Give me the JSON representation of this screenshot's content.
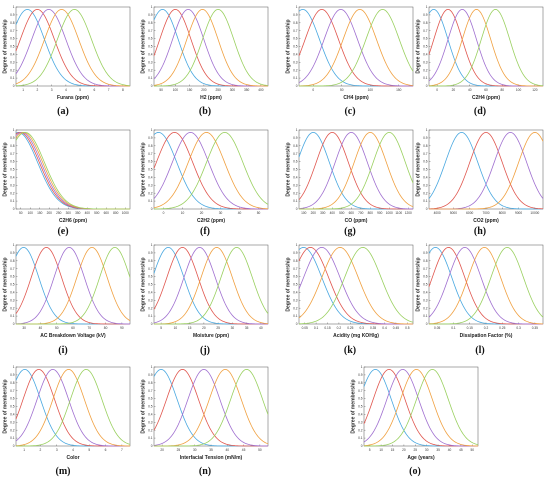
{
  "colors": [
    "#4aa8e0",
    "#e0574f",
    "#a070d0",
    "#f0a040",
    "#9ad060",
    "#58c8c8",
    "#e070b0",
    "#c0a060"
  ],
  "chart_data": [
    {
      "id": "a",
      "caption": "(a)",
      "type": "line",
      "xlabel": "Furans (ppm)",
      "ylabel": "Degree of membership",
      "xlim": [
        0,
        8
      ],
      "ylim": [
        0,
        1
      ],
      "xticks": [
        "1",
        "2",
        "3",
        "4",
        "5",
        "6",
        "7",
        "8"
      ],
      "yticks": [
        "0",
        "0.1",
        "0.2",
        "0.3",
        "0.4",
        "0.5",
        "0.6",
        "0.7",
        "0.8",
        "0.9",
        "1"
      ],
      "series": [
        {
          "center": 0.8,
          "sigma": 1.2
        },
        {
          "center": 1.5,
          "sigma": 1.2
        },
        {
          "center": 2.3,
          "sigma": 1.2
        },
        {
          "center": 3.2,
          "sigma": 1.2
        },
        {
          "center": 4.1,
          "sigma": 1.2
        }
      ]
    },
    {
      "id": "b",
      "caption": "(b)",
      "type": "line",
      "xlabel": "H2 (ppm)",
      "ylabel": "Degree of membership",
      "xlim": [
        0,
        400
      ],
      "ylim": [
        0,
        1
      ],
      "xticks": [
        "50",
        "100",
        "150",
        "200",
        "250",
        "300",
        "350",
        "400"
      ],
      "yticks": [
        "0",
        "0.1",
        "0.2",
        "0.3",
        "0.4",
        "0.5",
        "0.6",
        "0.7",
        "0.8",
        "0.9",
        "1"
      ],
      "series": [
        {
          "center": 30,
          "sigma": 55
        },
        {
          "center": 75,
          "sigma": 55
        },
        {
          "center": 120,
          "sigma": 55
        },
        {
          "center": 170,
          "sigma": 55
        },
        {
          "center": 225,
          "sigma": 55
        }
      ]
    },
    {
      "id": "c",
      "caption": "(c)",
      "type": "line",
      "xlabel": "CH4 (ppm)",
      "ylabel": "Degree of membership",
      "xlim": [
        0,
        150
      ],
      "ylim": [
        0,
        1
      ],
      "xticks": [
        "0",
        "50",
        "100",
        "150"
      ],
      "yticks": [
        "0",
        "0.1",
        "0.2",
        "0.3",
        "0.4",
        "0.5",
        "0.6",
        "0.7",
        "0.8",
        "0.9",
        "1"
      ],
      "series": [
        {
          "center": 5,
          "sigma": 22
        },
        {
          "center": 30,
          "sigma": 22
        },
        {
          "center": 55,
          "sigma": 22
        },
        {
          "center": 80,
          "sigma": 22
        },
        {
          "center": 110,
          "sigma": 22
        }
      ]
    },
    {
      "id": "d",
      "caption": "(d)",
      "type": "line",
      "xlabel": "C2H4 (ppm)",
      "ylabel": "Degree of membership",
      "xlim": [
        0,
        120
      ],
      "ylim": [
        0,
        1
      ],
      "xticks": [
        "0",
        "20",
        "40",
        "60",
        "80",
        "100",
        "120"
      ],
      "yticks": [
        "0",
        "0.1",
        "0.2",
        "0.3",
        "0.4",
        "0.5",
        "0.6",
        "0.7",
        "0.8",
        "0.9",
        "1"
      ],
      "series": [
        {
          "center": 5,
          "sigma": 15
        },
        {
          "center": 20,
          "sigma": 15
        },
        {
          "center": 35,
          "sigma": 15
        },
        {
          "center": 50,
          "sigma": 15
        },
        {
          "center": 70,
          "sigma": 15
        }
      ]
    },
    {
      "id": "e",
      "caption": "(e)",
      "type": "line",
      "xlabel": "C2H6 (ppm)",
      "ylabel": "Degree of membership",
      "xlim": [
        0,
        1000
      ],
      "ylim": [
        0,
        1
      ],
      "xticks": [
        "50",
        "100",
        "150",
        "200",
        "250",
        "300",
        "350",
        "400",
        "500",
        "600",
        "800",
        "1000"
      ],
      "yticks": [
        "0",
        "0.1",
        "0.2",
        "0.3",
        "0.4",
        "0.5",
        "0.6",
        "0.7",
        "0.8",
        "0.9",
        "1"
      ],
      "series": [
        {
          "center": 20,
          "sigma": 170
        },
        {
          "center": 35,
          "sigma": 170
        },
        {
          "center": 50,
          "sigma": 170
        },
        {
          "center": 65,
          "sigma": 170
        },
        {
          "center": 80,
          "sigma": 170
        }
      ]
    },
    {
      "id": "f",
      "caption": "(f)",
      "type": "line",
      "xlabel": "C2H2 (ppm)",
      "ylabel": "Degree of membership",
      "xlim": [
        0,
        50
      ],
      "ylim": [
        0,
        1
      ],
      "xticks": [
        "0",
        "10",
        "20",
        "30",
        "40",
        "50"
      ],
      "yticks": [
        "0",
        "0.1",
        "0.2",
        "0.3",
        "0.4",
        "0.5",
        "0.6",
        "0.7",
        "0.8",
        "0.9",
        "1"
      ],
      "series": [
        {
          "center": 2,
          "sigma": 8
        },
        {
          "center": 9,
          "sigma": 8
        },
        {
          "center": 16,
          "sigma": 8
        },
        {
          "center": 23,
          "sigma": 8
        },
        {
          "center": 31,
          "sigma": 8
        }
      ]
    },
    {
      "id": "g",
      "caption": "(g)",
      "type": "line",
      "xlabel": "CO (ppm)",
      "ylabel": "Degree of membership",
      "xlim": [
        0,
        1200
      ],
      "ylim": [
        0,
        1
      ],
      "xticks": [
        "100",
        "200",
        "300",
        "400",
        "500",
        "600",
        "700",
        "800",
        "900",
        "1000",
        "1100",
        "1200"
      ],
      "yticks": [
        "0",
        "0.1",
        "0.2",
        "0.3",
        "0.4",
        "0.5",
        "0.6",
        "0.7",
        "0.8",
        "0.9",
        "1"
      ],
      "series": [
        {
          "center": 150,
          "sigma": 170
        },
        {
          "center": 350,
          "sigma": 170
        },
        {
          "center": 550,
          "sigma": 170
        },
        {
          "center": 750,
          "sigma": 170
        },
        {
          "center": 950,
          "sigma": 170
        }
      ]
    },
    {
      "id": "h",
      "caption": "(h)",
      "type": "line",
      "xlabel": "CO2 (ppm)",
      "ylabel": "Degree of membership",
      "xlim": [
        3000,
        10000
      ],
      "ylim": [
        0,
        1
      ],
      "xticks": [
        "4000",
        "5000",
        "6000",
        "7000",
        "8000",
        "9000",
        "10000"
      ],
      "yticks": [
        "0",
        "0.1",
        "0.2",
        "0.3",
        "0.4",
        "0.5",
        "0.6",
        "0.7",
        "0.8",
        "0.9",
        "1"
      ],
      "series": [
        {
          "center": 5000,
          "sigma": 1000
        },
        {
          "center": 6500,
          "sigma": 1000
        },
        {
          "center": 8000,
          "sigma": 1000
        },
        {
          "center": 9500,
          "sigma": 1000
        }
      ]
    },
    {
      "id": "i",
      "caption": "(i)",
      "type": "line",
      "xlabel": "AC Breakdown Voltage (kV)",
      "ylabel": "Degree of membership",
      "xlim": [
        25,
        100
      ],
      "ylim": [
        0,
        1
      ],
      "xticks": [
        "30",
        "40",
        "50",
        "60",
        "70",
        "80",
        "90"
      ],
      "yticks": [
        "0",
        "0.1",
        "0.2",
        "0.3",
        "0.4",
        "0.5",
        "0.6",
        "0.7",
        "0.8",
        "0.9",
        "1"
      ],
      "series": [
        {
          "center": 30,
          "sigma": 10
        },
        {
          "center": 45,
          "sigma": 10
        },
        {
          "center": 60,
          "sigma": 10
        },
        {
          "center": 75,
          "sigma": 10
        },
        {
          "center": 90,
          "sigma": 10
        }
      ]
    },
    {
      "id": "j",
      "caption": "(j)",
      "type": "line",
      "xlabel": "Moisture (ppm)",
      "ylabel": "Degree of membership",
      "xlim": [
        0,
        40
      ],
      "ylim": [
        0,
        1
      ],
      "xticks": [
        "5",
        "10",
        "15",
        "20",
        "25",
        "30",
        "35",
        "40"
      ],
      "yticks": [
        "0",
        "0.1",
        "0.2",
        "0.3",
        "0.4",
        "0.5",
        "0.6",
        "0.7",
        "0.8",
        "0.9",
        "1"
      ],
      "series": [
        {
          "center": 5,
          "sigma": 5.5
        },
        {
          "center": 10,
          "sigma": 5.5
        },
        {
          "center": 16,
          "sigma": 5.5
        },
        {
          "center": 22,
          "sigma": 5.5
        },
        {
          "center": 29,
          "sigma": 5.5
        }
      ]
    },
    {
      "id": "k",
      "caption": "(k)",
      "type": "line",
      "xlabel": "Acidity (mg KOH/g)",
      "ylabel": "Degree of membership",
      "xlim": [
        0,
        0.5
      ],
      "ylim": [
        0,
        1
      ],
      "xticks": [
        "0.05",
        "0.1",
        "0.15",
        "0.2",
        "0.25",
        "0.3",
        "0.35",
        "0.4",
        "0.45",
        "0.5"
      ],
      "yticks": [
        "0",
        "0.1",
        "0.2",
        "0.3",
        "0.4",
        "0.5",
        "0.6",
        "0.7",
        "0.8",
        "0.9",
        "1"
      ],
      "series": [
        {
          "center": 0.02,
          "sigma": 0.08
        },
        {
          "center": 0.05,
          "sigma": 0.08
        },
        {
          "center": 0.1,
          "sigma": 0.08
        },
        {
          "center": 0.18,
          "sigma": 0.08
        },
        {
          "center": 0.28,
          "sigma": 0.08
        }
      ]
    },
    {
      "id": "l",
      "caption": "(l)",
      "type": "line",
      "xlabel": "Dissipation Factor (%)",
      "ylabel": "Degree of membership",
      "xlim": [
        0,
        0.35
      ],
      "ylim": [
        0,
        1
      ],
      "xticks": [
        "0.05",
        "0.1",
        "0.15",
        "0.2",
        "0.25",
        "0.3",
        "0.35"
      ],
      "yticks": [
        "0",
        "0.1",
        "0.2",
        "0.3",
        "0.4",
        "0.5",
        "0.6",
        "0.7",
        "0.8",
        "0.9",
        "1"
      ],
      "series": [
        {
          "center": 0.02,
          "sigma": 0.05
        },
        {
          "center": 0.06,
          "sigma": 0.05
        },
        {
          "center": 0.11,
          "sigma": 0.05
        },
        {
          "center": 0.17,
          "sigma": 0.05
        },
        {
          "center": 0.24,
          "sigma": 0.05
        }
      ]
    },
    {
      "id": "m",
      "caption": "(m)",
      "type": "line",
      "xlabel": "Color",
      "ylabel": "Degree of membership",
      "xlim": [
        0.5,
        7
      ],
      "ylim": [
        0,
        1
      ],
      "xticks": [
        "1",
        "2",
        "3",
        "4",
        "5",
        "6",
        "7"
      ],
      "yticks": [
        "0",
        "0.1",
        "0.2",
        "0.3",
        "0.4",
        "0.5",
        "0.6",
        "0.7",
        "0.8",
        "0.9",
        "1"
      ],
      "series": [
        {
          "center": 1,
          "sigma": 0.9
        },
        {
          "center": 1.8,
          "sigma": 0.9
        },
        {
          "center": 2.6,
          "sigma": 0.9
        },
        {
          "center": 3.5,
          "sigma": 0.9
        },
        {
          "center": 4.5,
          "sigma": 0.9
        }
      ]
    },
    {
      "id": "n",
      "caption": "(n)",
      "type": "line",
      "xlabel": "Interfacial Tension (mN/m)",
      "ylabel": "Degree of membership",
      "xlim": [
        18,
        50
      ],
      "ylim": [
        0,
        1
      ],
      "xticks": [
        "20",
        "25",
        "30",
        "35",
        "40",
        "45",
        "50"
      ],
      "yticks": [
        "0",
        "0.1",
        "0.2",
        "0.3",
        "0.4",
        "0.5",
        "0.6",
        "0.7",
        "0.8",
        "0.9",
        "1"
      ],
      "series": [
        {
          "center": 20,
          "sigma": 4.5
        },
        {
          "center": 26,
          "sigma": 4.5
        },
        {
          "center": 32,
          "sigma": 4.5
        },
        {
          "center": 38,
          "sigma": 4.5
        },
        {
          "center": 44,
          "sigma": 4.5
        }
      ]
    },
    {
      "id": "o",
      "caption": "(o)",
      "type": "line",
      "xlabel": "Age (years)",
      "ylabel": "Degree of membership",
      "xlim": [
        0,
        50
      ],
      "ylim": [
        0,
        1
      ],
      "xticks": [
        "5",
        "10",
        "15",
        "20",
        "25",
        "30",
        "35",
        "40",
        "45",
        "50"
      ],
      "yticks": [
        "0",
        "0.1",
        "0.2",
        "0.3",
        "0.4",
        "0.5",
        "0.6",
        "0.7",
        "0.8",
        "0.9",
        "1"
      ],
      "series": [
        {
          "center": 5,
          "sigma": 7
        },
        {
          "center": 11,
          "sigma": 7
        },
        {
          "center": 17,
          "sigma": 7
        },
        {
          "center": 23,
          "sigma": 7
        },
        {
          "center": 30,
          "sigma": 7
        }
      ]
    }
  ]
}
